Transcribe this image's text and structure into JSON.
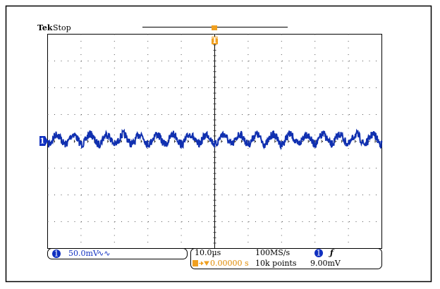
{
  "header": {
    "brand": "Tek",
    "status": "Stop"
  },
  "trigger": {
    "marker": "T"
  },
  "channel": {
    "marker": "1",
    "scale": "50.0mV",
    "bandwidth_icon": "∿∿"
  },
  "timebase": {
    "scale": "10.0µs",
    "sample_rate": "100MS/s",
    "trigger_source": "1",
    "trigger_slope": "ƒ",
    "trigger_position": "0.00000 s",
    "record_length": "10k points",
    "trigger_level": "9.00mV"
  }
}
